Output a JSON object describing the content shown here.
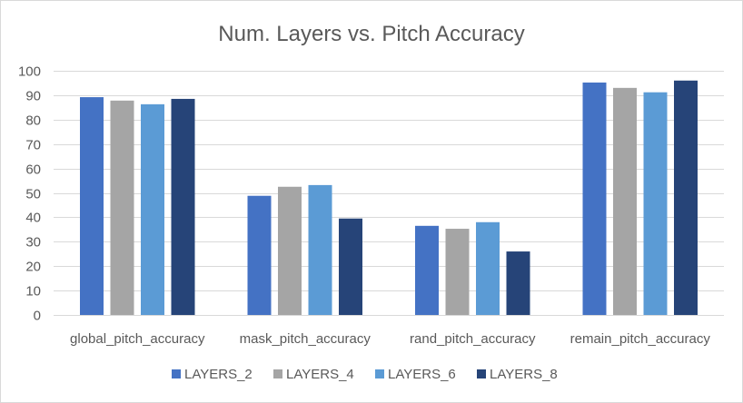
{
  "chart_data": {
    "type": "bar",
    "title": "Num. Layers vs. Pitch Accuracy",
    "xlabel": "",
    "ylabel": "",
    "ylim": [
      0,
      100
    ],
    "yticks": [
      0,
      10,
      20,
      30,
      40,
      50,
      60,
      70,
      80,
      90,
      100
    ],
    "grid": true,
    "legend_position": "bottom",
    "categories": [
      "global_pitch_accuracy",
      "mask_pitch_accuracy",
      "rand_pitch_accuracy",
      "remain_pitch_accuracy"
    ],
    "series": [
      {
        "name": "LAYERS_2",
        "color": "#4472C4",
        "values": [
          89.2,
          48.8,
          36.5,
          95.2
        ]
      },
      {
        "name": "LAYERS_4",
        "color": "#A5A5A5",
        "values": [
          87.8,
          52.5,
          35.3,
          93.0
        ]
      },
      {
        "name": "LAYERS_6",
        "color": "#5B9BD5",
        "values": [
          86.3,
          53.2,
          38.0,
          91.2
        ]
      },
      {
        "name": "LAYERS_8",
        "color": "#264478",
        "values": [
          88.5,
          39.5,
          26.0,
          96.0
        ]
      }
    ]
  },
  "colors": {
    "gridline": "#d9d9d9",
    "text": "#595959"
  }
}
